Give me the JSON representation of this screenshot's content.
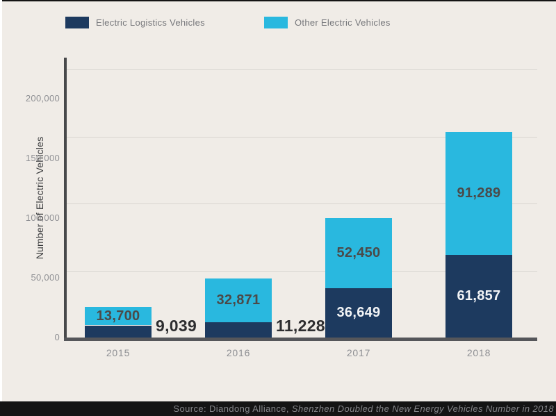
{
  "legend": {
    "items": [
      {
        "label": "Electric Logistics Vehicles",
        "color": "#1d3a5f"
      },
      {
        "label": "Other Electric Vehicles",
        "color": "#29b8df"
      }
    ]
  },
  "chart_data": {
    "type": "bar",
    "stacked": true,
    "categories": [
      "2015",
      "2016",
      "2017",
      "2018"
    ],
    "series": [
      {
        "name": "Electric Logistics Vehicles",
        "color": "#1d3a5f",
        "label_color": "#f2f4f6",
        "values": [
          9039,
          11228,
          36649,
          61857
        ],
        "value_labels": [
          "9,039",
          "11,228",
          "36,649",
          "61,857"
        ]
      },
      {
        "name": "Other Electric Vehicles",
        "color": "#29b8df",
        "label_color": "#4b4a49",
        "values": [
          13700,
          32871,
          52450,
          91289
        ],
        "value_labels": [
          "13,700",
          "32,871",
          "52,450",
          "91,289"
        ]
      }
    ],
    "title": "",
    "xlabel": "",
    "ylabel": "Number of Electric Vehicles",
    "yticks": [
      0,
      50000,
      100000,
      150000,
      200000
    ],
    "ytick_labels": [
      "0",
      "50,000",
      "100,000",
      "150,000",
      "200,000"
    ],
    "ylim": [
      0,
      210000
    ],
    "grid": true,
    "legend_position": "top"
  },
  "source_bar": {
    "prefix": "Source: Diandong Alliance, ",
    "title": "Shenzhen Doubled the New Energy Vehicles Number in 2018"
  },
  "colors": {
    "background": "#f0ece7",
    "axis": "#48494b",
    "baseline": "#55565a",
    "gridline": "#d8d5d0",
    "outside_label": "#2d2d2f",
    "tick_label": "#8f9094",
    "footer_background": "#141414",
    "footer_text": "#85868a"
  }
}
